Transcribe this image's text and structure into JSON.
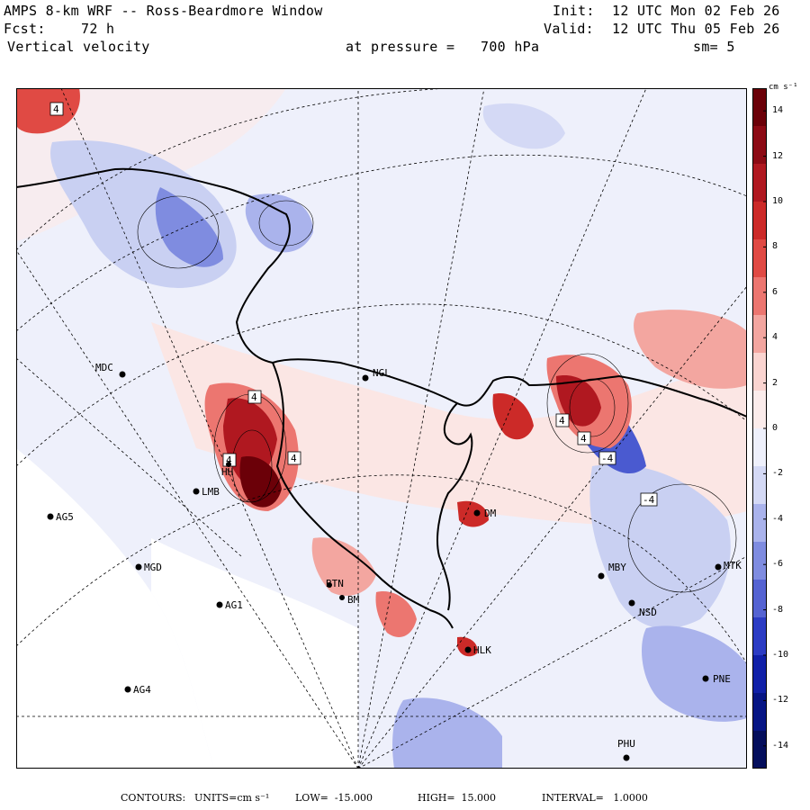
{
  "header": {
    "title": "AMPS 8-km WRF -- Ross-Beardmore Window",
    "forecast_label": "Fcst:",
    "forecast_hours": "72 h",
    "field": "Vertical velocity",
    "pressure_label": "at pressure =",
    "pressure_value": "700 hPa",
    "init_label": "Init:",
    "init_time": "12 UTC Mon 02 Feb 26",
    "valid_label": "Valid:",
    "valid_time": "12 UTC Thu 05 Feb 26",
    "smoothing": "sm= 5"
  },
  "colorbar": {
    "unit_label": "cm s⁻¹",
    "ticks": [
      "14",
      "12",
      "10",
      "8",
      "6",
      "4",
      "2",
      "0",
      "-2",
      "-4",
      "-6",
      "-8",
      "-10",
      "-12",
      "-14"
    ],
    "colors": [
      "#6b0008",
      "#8c0a14",
      "#b01820",
      "#cc2a28",
      "#e04a44",
      "#ec7670",
      "#f3a6a0",
      "#fad4d0",
      "#fbeceb",
      "#eef0fb",
      "#d4d9f5",
      "#aab3ec",
      "#7f8ce0",
      "#5563d2",
      "#2c3cc4",
      "#1020a8",
      "#061584",
      "#040e5c"
    ]
  },
  "stations": [
    {
      "code": "MDC"
    },
    {
      "code": "NGL"
    },
    {
      "code": "AG5"
    },
    {
      "code": "MGD"
    },
    {
      "code": "AG1"
    },
    {
      "code": "AG4"
    },
    {
      "code": "DM"
    },
    {
      "code": "MBY"
    },
    {
      "code": "NSD"
    },
    {
      "code": "MTK"
    },
    {
      "code": "HLK"
    },
    {
      "code": "PNE"
    },
    {
      "code": "PHU"
    },
    {
      "code": "LMB"
    },
    {
      "code": "HH"
    },
    {
      "code": "BTN"
    },
    {
      "code": "BM"
    }
  ],
  "map_labels": [
    "4",
    "4",
    "4",
    "4",
    "4",
    "-4",
    "-4",
    "4"
  ],
  "footer": {
    "contours_label": "CONTOURS:",
    "units_label": "UNITS=cm s⁻¹",
    "low": "LOW=  -15.000",
    "high": "HIGH=  15.000",
    "interval": "INTERVAL=   1.0000"
  }
}
